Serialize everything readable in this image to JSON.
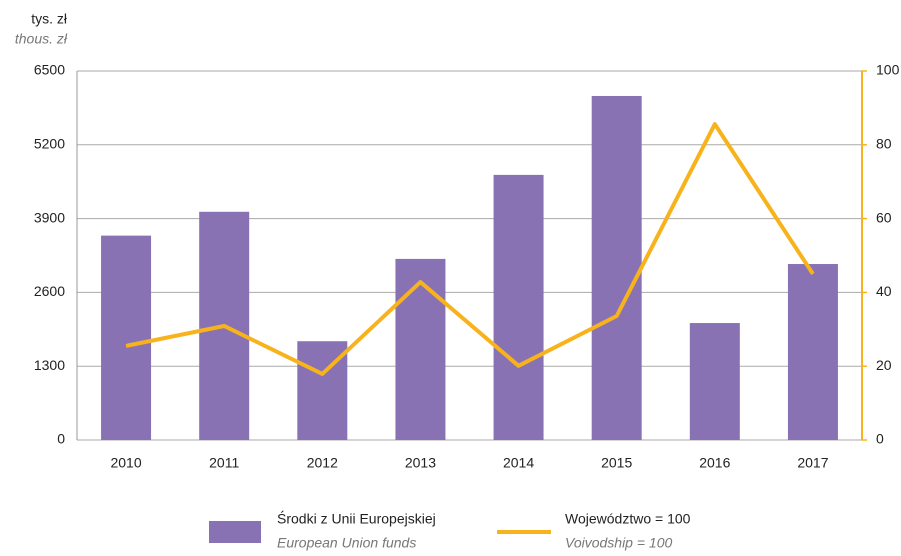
{
  "chart_data": {
    "type": "bar_line",
    "y_label": "tys. zł",
    "y_label_en": "thous. zł",
    "categories": [
      "2010",
      "2011",
      "2012",
      "2013",
      "2014",
      "2015",
      "2016",
      "2017"
    ],
    "series": [
      {
        "name": "Środki z Unii Europejskiej",
        "name_en": "European Union funds",
        "type": "bar",
        "color": "#8872b4",
        "values": [
          3600,
          4020,
          1740,
          3190,
          4670,
          6060,
          2060,
          3100
        ]
      },
      {
        "name": "Województwo = 100",
        "name_en": "Voivodship = 100",
        "type": "line",
        "color": "#f8b31c",
        "axis": "y2",
        "values": [
          25.5,
          30.9,
          17.9,
          42.8,
          20.1,
          33.6,
          85.6,
          45
        ]
      }
    ],
    "ylim": [
      0,
      6500
    ],
    "yticks": [
      0,
      1300,
      2600,
      3900,
      5200,
      6500
    ],
    "y2lim": [
      0,
      100
    ],
    "y2ticks": [
      0,
      20,
      40,
      60,
      80,
      100
    ],
    "grid": true
  }
}
